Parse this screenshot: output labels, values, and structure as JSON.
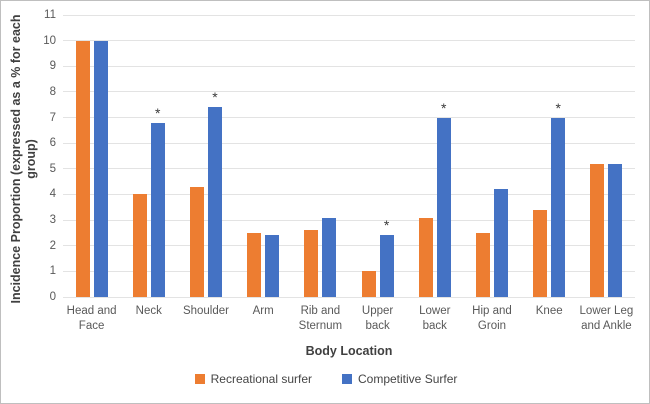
{
  "chart_data": {
    "type": "bar",
    "title": "",
    "categories": [
      "Head and Face",
      "Neck",
      "Shoulder",
      "Arm",
      "Rib and Sternum",
      "Upper back",
      "Lower back",
      "Hip and Groin",
      "Knee",
      "Lower Leg and Ankle"
    ],
    "category_display_lines": [
      [
        "Head and",
        "Face"
      ],
      [
        "Neck"
      ],
      [
        "Shoulder"
      ],
      [
        "Arm"
      ],
      [
        "Rib and",
        "Sternum"
      ],
      [
        "Upper",
        "back"
      ],
      [
        "Lower",
        "back"
      ],
      [
        "Hip and",
        "Groin"
      ],
      [
        "Knee"
      ],
      [
        "Lower Leg",
        "and Ankle"
      ]
    ],
    "series": [
      {
        "name": "Recreational surfer",
        "color": "#ED7D31",
        "values": [
          10,
          4,
          4.3,
          2.5,
          2.6,
          1,
          3.1,
          2.5,
          3.4,
          5.2
        ]
      },
      {
        "name": "Competitive Surfer",
        "color": "#4472C4",
        "values": [
          10,
          6.8,
          7.4,
          2.4,
          3.1,
          2.4,
          7,
          4.2,
          7,
          5.2
        ]
      }
    ],
    "significance_symbol": "*",
    "significance_on_competitive_bar": [
      false,
      true,
      true,
      false,
      false,
      true,
      true,
      false,
      true,
      false
    ],
    "xlabel": "Body Location",
    "ylabel": "Incidence Proportion (expressed as a % for each group)",
    "ylabel_lines": [
      "Incidence Proportion (expressed as a  % for each",
      "group)"
    ],
    "ylim": [
      0,
      11
    ],
    "yticks": [
      0,
      1,
      2,
      3,
      4,
      5,
      6,
      7,
      8,
      9,
      10,
      11
    ],
    "grid": true,
    "legend_position": "bottom"
  }
}
